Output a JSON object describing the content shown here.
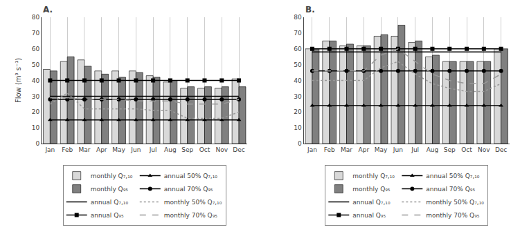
{
  "chart_data": [
    {
      "type": "bar",
      "title": "A.",
      "categories": [
        "Jan",
        "Feb",
        "Mar",
        "Apr",
        "May",
        "Jun",
        "Jul",
        "Aug",
        "Sep",
        "Oct",
        "Nov",
        "Dec"
      ],
      "ylabel": "Flow (m³ s⁻¹)",
      "series": [
        {
          "name": "monthly Q₇,₁₀",
          "type": "bar",
          "color": "#d9d9d9",
          "values": [
            47,
            52,
            53,
            46,
            46,
            46,
            43,
            39,
            35,
            35,
            35,
            41
          ]
        },
        {
          "name": "monthly Q₉₅",
          "type": "bar",
          "color": "#808080",
          "values": [
            46,
            55,
            49,
            44,
            42,
            45,
            42,
            40,
            36,
            36,
            36,
            36
          ]
        },
        {
          "name": "annual Q₇,₁₀",
          "type": "line",
          "color": "#000000",
          "line_style": "solid",
          "values": [
            30,
            30,
            30,
            30,
            30,
            30,
            30,
            30,
            30,
            30,
            30,
            30
          ]
        },
        {
          "name": "annual Q₉₅",
          "type": "line",
          "color": "#000000",
          "line_style": "solid",
          "marker": "square",
          "values": [
            40,
            40,
            40,
            40,
            40,
            40,
            40,
            40,
            40,
            40,
            40,
            40
          ]
        },
        {
          "name": "annual 50% Q₇,₁₀",
          "type": "line",
          "color": "#000000",
          "line_style": "solid",
          "marker": "triangle",
          "values": [
            15,
            15,
            15,
            15,
            15,
            15,
            15,
            15,
            15,
            15,
            15,
            15
          ]
        },
        {
          "name": "annual 70% Q₉₅",
          "type": "line",
          "color": "#000000",
          "line_style": "solid",
          "marker": "circle",
          "values": [
            28,
            28,
            28,
            28,
            28,
            28,
            28,
            28,
            28,
            28,
            28,
            28
          ]
        },
        {
          "name": "monthly 50% Q₇,₁₀",
          "type": "line",
          "color": "#999999",
          "line_style": "dotted",
          "values": [
            25,
            32,
            22,
            22,
            22,
            22,
            21,
            21,
            16,
            16,
            16,
            20
          ]
        },
        {
          "name": "monthly 70% Q₉₅",
          "type": "line",
          "color": "#999999",
          "line_style": "dashed",
          "values": [
            29,
            29,
            28,
            28,
            28,
            27,
            27,
            27,
            25,
            25,
            25,
            28
          ]
        }
      ],
      "ylim": [
        0,
        80
      ],
      "yticks": [
        0,
        10,
        20,
        30,
        40,
        50,
        60,
        70,
        80
      ],
      "grid": true,
      "legend": "bottom"
    },
    {
      "type": "bar",
      "title": "B.",
      "categories": [
        "Jan",
        "Feb",
        "Mar",
        "Apr",
        "May",
        "Jun",
        "Jul",
        "Aug",
        "Sep",
        "Oct",
        "Nov",
        "Dec"
      ],
      "series": [
        {
          "name": "monthly Q₇,₁₀",
          "type": "bar",
          "color": "#d9d9d9",
          "values": [
            60,
            65,
            62,
            62,
            68,
            68,
            64,
            55,
            52,
            52,
            52,
            60
          ]
        },
        {
          "name": "monthly Q₉₅",
          "type": "bar",
          "color": "#808080",
          "values": [
            60,
            65,
            63,
            62,
            69,
            75,
            65,
            56,
            52,
            52,
            52,
            60
          ]
        },
        {
          "name": "annual Q₇,₁₀",
          "type": "line",
          "color": "#000000",
          "line_style": "solid",
          "values": [
            58,
            58,
            58,
            58,
            58,
            58,
            58,
            58,
            58,
            58,
            58,
            58
          ]
        },
        {
          "name": "annual Q₉₅",
          "type": "line",
          "color": "#000000",
          "line_style": "solid",
          "marker": "square",
          "values": [
            60,
            60,
            60,
            60,
            60,
            60,
            60,
            60,
            60,
            60,
            60,
            60
          ]
        },
        {
          "name": "annual 50% Q₇,₁₀",
          "type": "line",
          "color": "#000000",
          "line_style": "solid",
          "marker": "triangle",
          "values": [
            24,
            24,
            24,
            24,
            24,
            24,
            24,
            24,
            24,
            24,
            24,
            24
          ]
        },
        {
          "name": "annual 70% Q₉₅",
          "type": "line",
          "color": "#000000",
          "line_style": "solid",
          "marker": "circle",
          "values": [
            46,
            46,
            46,
            46,
            46,
            46,
            46,
            46,
            46,
            46,
            46,
            46
          ]
        },
        {
          "name": "monthly 50% Q₇,₁₀",
          "type": "line",
          "color": "#999999",
          "line_style": "dotted",
          "values": [
            40,
            40,
            40,
            40,
            48,
            52,
            44,
            38,
            35,
            33,
            33,
            38
          ]
        },
        {
          "name": "monthly 70% Q₉₅",
          "type": "line",
          "color": "#999999",
          "line_style": "dashed",
          "values": [
            46,
            46,
            46,
            46,
            56,
            60,
            52,
            44,
            40,
            38,
            38,
            44
          ]
        }
      ],
      "ylim": [
        0,
        80
      ],
      "yticks": [
        0,
        10,
        20,
        30,
        40,
        50,
        60,
        70,
        80
      ],
      "grid": true,
      "legend": "bottom"
    }
  ]
}
